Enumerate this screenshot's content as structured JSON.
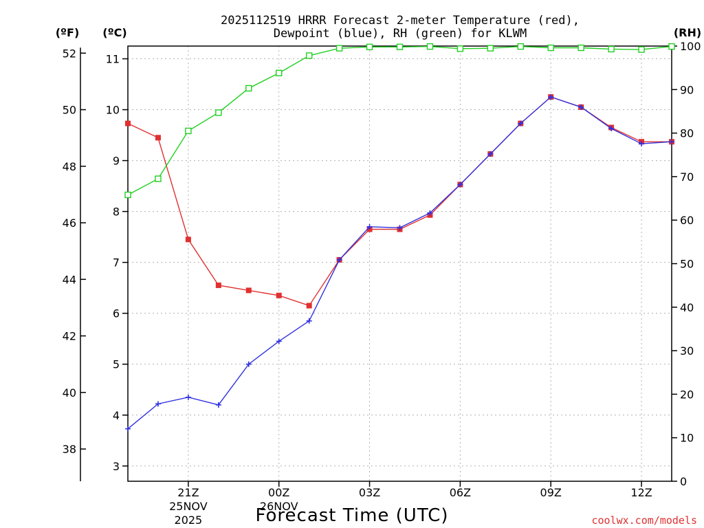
{
  "chart_data": {
    "type": "line",
    "title_line1": "2025112519 HRRR Forecast 2-meter Temperature (red),",
    "title_line2": "Dewpoint (blue), RH (green) for KLWM",
    "xlabel": "Forecast Time (UTC)",
    "credit": "coolwx.com/models",
    "unit_f": "(ºF)",
    "unit_c": "(ºC)",
    "unit_rh": "(RH)",
    "x_hours": [
      0,
      1,
      2,
      3,
      4,
      5,
      6,
      7,
      8,
      9,
      10,
      11,
      12,
      13,
      14,
      15,
      16,
      17,
      18
    ],
    "x_ticks": [
      {
        "hour": 2,
        "label": "21Z",
        "sub1": "25NOV",
        "sub2": "2025"
      },
      {
        "hour": 5,
        "label": "00Z",
        "sub1": "26NOV",
        "sub2": ""
      },
      {
        "hour": 8,
        "label": "03Z",
        "sub1": "",
        "sub2": ""
      },
      {
        "hour": 11,
        "label": "06Z",
        "sub1": "",
        "sub2": ""
      },
      {
        "hour": 14,
        "label": "09Z",
        "sub1": "",
        "sub2": ""
      },
      {
        "hour": 17,
        "label": "12Z",
        "sub1": "",
        "sub2": ""
      }
    ],
    "c_ticks": [
      "3",
      "4",
      "5",
      "6",
      "7",
      "8",
      "9",
      "10",
      "11"
    ],
    "f_ticks": [
      "38",
      "40",
      "42",
      "44",
      "46",
      "48",
      "50",
      "52"
    ],
    "rh_ticks": [
      "0",
      "10",
      "20",
      "30",
      "40",
      "50",
      "60",
      "70",
      "80",
      "90",
      "100"
    ],
    "ylim_c": [
      2.7,
      11.25
    ],
    "ylim_rh": [
      0,
      100
    ],
    "series": [
      {
        "name": "Temperature",
        "color": "#e03030",
        "marker": "square",
        "values_c": [
          9.73,
          9.45,
          7.45,
          6.55,
          6.45,
          6.35,
          6.15,
          7.05,
          7.65,
          7.65,
          7.93,
          8.53,
          9.13,
          9.73,
          10.25,
          10.05,
          9.65,
          9.37,
          9.37
        ]
      },
      {
        "name": "Dewpoint",
        "color": "#3030e0",
        "marker": "plus",
        "values_c": [
          3.73,
          4.22,
          4.35,
          4.2,
          5.0,
          5.45,
          5.85,
          7.05,
          7.7,
          7.68,
          7.97,
          8.53,
          9.13,
          9.73,
          10.25,
          10.05,
          9.63,
          9.33,
          9.37
        ]
      },
      {
        "name": "RH",
        "color": "#20d020",
        "marker": "open-square",
        "values_rh": [
          65.8,
          69.5,
          80.5,
          84.7,
          90.3,
          93.8,
          97.8,
          99.5,
          99.8,
          99.8,
          99.9,
          99.4,
          99.5,
          99.9,
          99.6,
          99.6,
          99.3,
          99.2,
          99.9
        ]
      }
    ]
  }
}
